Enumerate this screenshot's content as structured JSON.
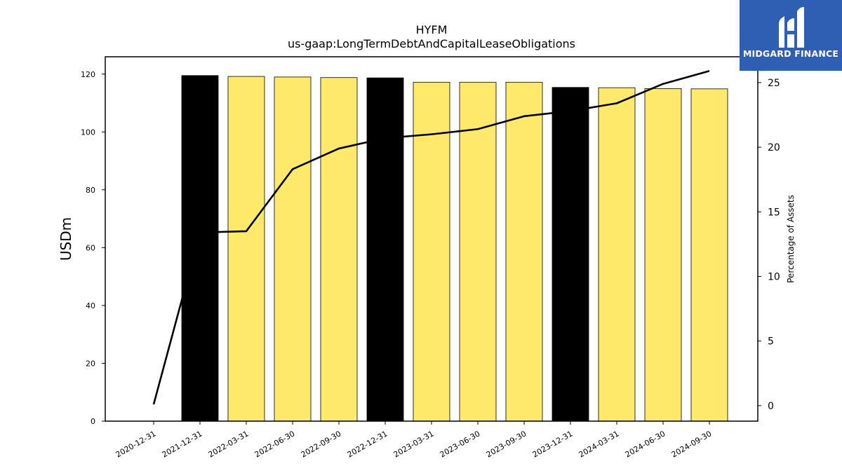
{
  "chart_data": {
    "type": "bar",
    "title": "HYFM",
    "subtitle": "us-gaap:LongTermDebtAndCapitalLeaseObligations",
    "ylabel": "USDm",
    "y2label": "Percentage of Assets",
    "ylim": [
      0,
      126
    ],
    "y2lim": [
      -1.2,
      27.0
    ],
    "yticks": [
      0,
      20,
      40,
      60,
      80,
      100,
      120
    ],
    "y2ticks": [
      0,
      5,
      10,
      15,
      20,
      25
    ],
    "grid": false,
    "categories": [
      "2020-12-31",
      "2021-12-31",
      "2022-03-31",
      "2022-06-30",
      "2022-09-30",
      "2022-12-31",
      "2023-03-31",
      "2023-06-30",
      "2023-09-30",
      "2023-12-31",
      "2024-03-31",
      "2024-06-30",
      "2024-09-30"
    ],
    "series": [
      {
        "axis": "left",
        "kind": "bar",
        "values": [
          0,
          119.5,
          119.2,
          119.0,
          118.8,
          118.7,
          117.2,
          117.2,
          117.2,
          115.4,
          115.3,
          115.0,
          114.9
        ],
        "colors": [
          "#ffe96b",
          "#000000",
          "#ffe96b",
          "#ffe96b",
          "#ffe96b",
          "#000000",
          "#ffe96b",
          "#ffe96b",
          "#ffe96b",
          "#000000",
          "#ffe96b",
          "#ffe96b",
          "#ffe96b"
        ]
      },
      {
        "axis": "right",
        "kind": "line",
        "color": "#000000",
        "values": [
          0.1,
          13.4,
          13.5,
          18.3,
          19.9,
          20.7,
          21.0,
          21.4,
          22.4,
          22.8,
          23.4,
          24.9,
          25.9
        ]
      }
    ]
  },
  "logo": {
    "text": "MIDGARD FINANCE",
    "background": "#2f5fb3"
  }
}
